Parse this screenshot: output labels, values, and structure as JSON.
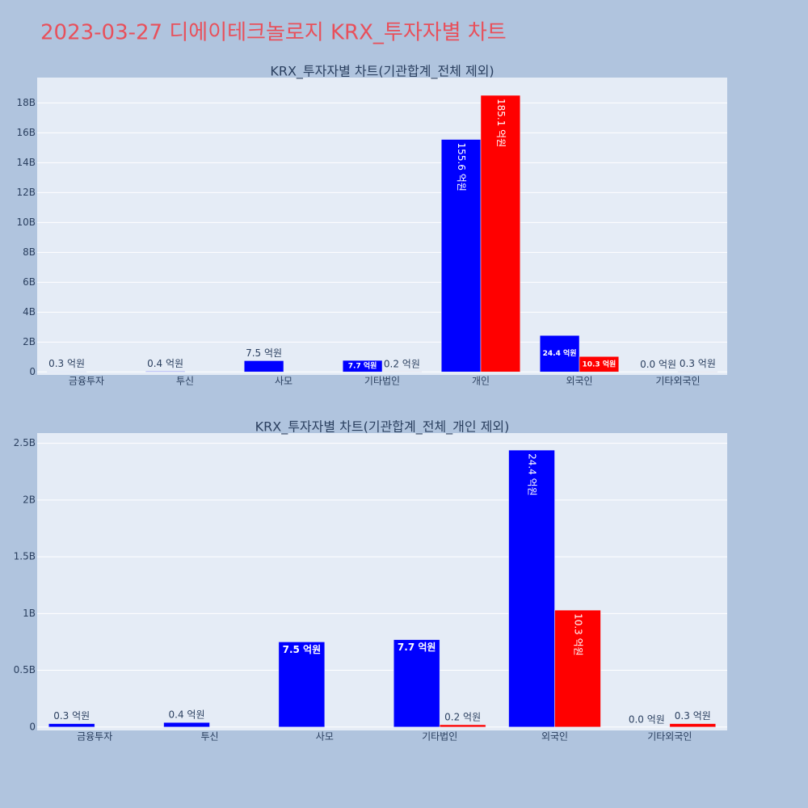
{
  "title": "2023-03-27 디에이테크놀로지 KRX_투자자별 차트",
  "chart_data": [
    {
      "type": "bar",
      "title": "KRX_투자자별 차트(기관합계_전체 제외)",
      "categories": [
        "금융투자",
        "투신",
        "사모",
        "기타법인",
        "개인",
        "외국인",
        "기타외국인"
      ],
      "series": [
        {
          "color": "#0000ff",
          "values": [
            30000000,
            40000000,
            750000000,
            770000000,
            15560000000,
            2440000000,
            0
          ],
          "value_labels": [
            "0.3 억원",
            "0.4 억원",
            "7.5 억원",
            "7.7 억원",
            "155.6 억원",
            "24.4 억원",
            "0.0 억원"
          ]
        },
        {
          "color": "#ff0000",
          "values": [
            null,
            null,
            null,
            20000000,
            18510000000,
            1030000000,
            30000000
          ],
          "value_labels": [
            null,
            null,
            null,
            "0.2 억원",
            "185.1 억원",
            "10.3 억원",
            "0.3 억원"
          ]
        }
      ],
      "ylim": [
        -200000000,
        19700000000
      ],
      "yticks": [
        0,
        {
          "value": 2000000000,
          "label": "2B"
        },
        {
          "value": 4000000000,
          "label": "4B"
        },
        {
          "value": 6000000000,
          "label": "6B"
        },
        {
          "value": 8000000000,
          "label": "8B"
        },
        {
          "value": 10000000000,
          "label": "10B"
        },
        {
          "value": 12000000000,
          "label": "12B"
        },
        {
          "value": 14000000000,
          "label": "14B"
        },
        {
          "value": 16000000000,
          "label": "16B"
        },
        {
          "value": 18000000000,
          "label": "18B"
        }
      ],
      "grid": true
    },
    {
      "type": "bar",
      "title": "KRX_투자자별 차트(기관합계_전체_개인 제외)",
      "categories": [
        "금융투자",
        "투신",
        "사모",
        "기타법인",
        "외국인",
        "기타외국인"
      ],
      "series": [
        {
          "color": "#0000ff",
          "values": [
            30000000,
            40000000,
            750000000,
            770000000,
            2440000000,
            0
          ],
          "value_labels": [
            "0.3 억원",
            "0.4 억원",
            "7.5 억원",
            "7.7 억원",
            "24.4 억원",
            "0.0 억원"
          ]
        },
        {
          "color": "#ff0000",
          "values": [
            null,
            null,
            null,
            20000000,
            1030000000,
            30000000
          ],
          "value_labels": [
            null,
            null,
            null,
            "0.2 억원",
            "10.3 억원",
            "0.3 억원"
          ]
        }
      ],
      "ylim": [
        -30000000,
        2590000000
      ],
      "yticks": [
        0,
        {
          "value": 500000000,
          "label": "0.5B"
        },
        {
          "value": 1000000000,
          "label": "1B"
        },
        {
          "value": 1500000000,
          "label": "1.5B"
        },
        {
          "value": 2000000000,
          "label": "2B"
        },
        {
          "value": 2500000000,
          "label": "2.5B"
        }
      ],
      "grid": true
    }
  ]
}
